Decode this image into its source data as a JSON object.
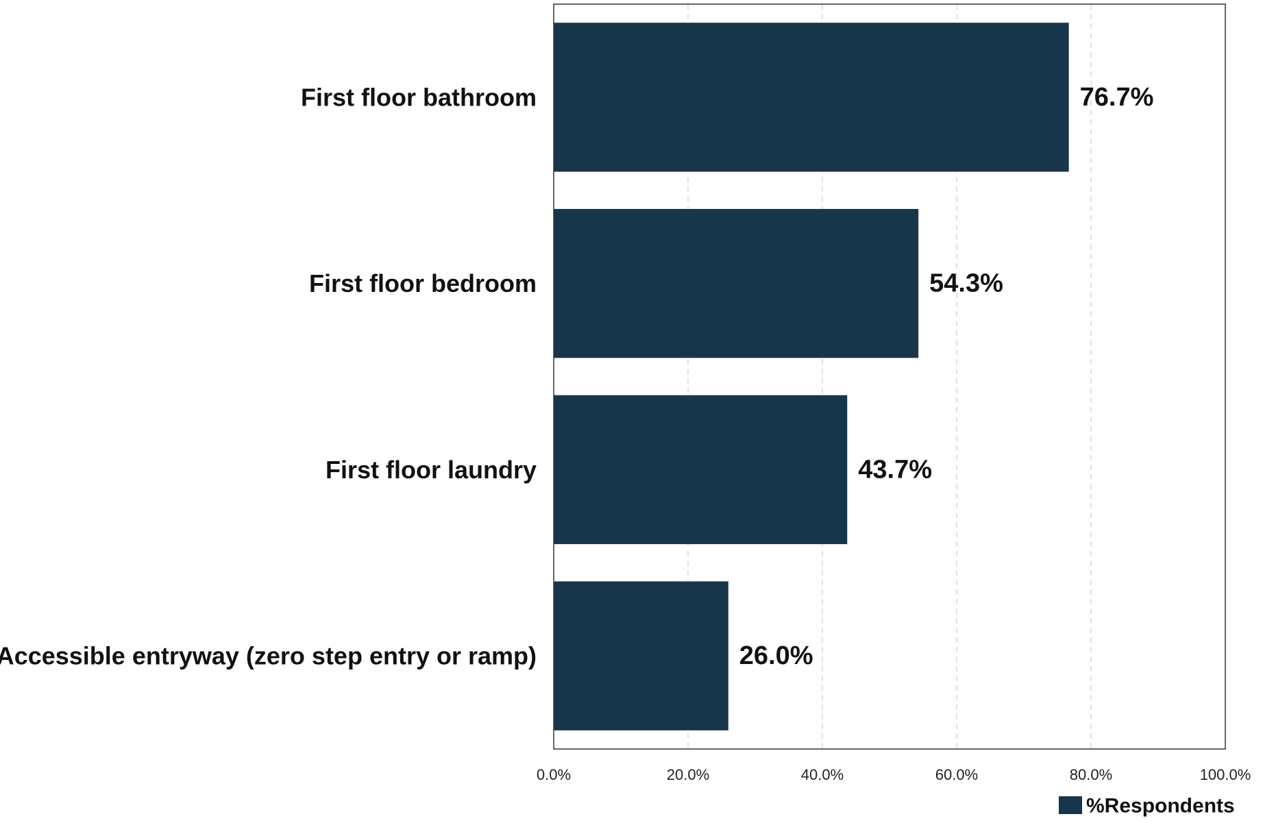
{
  "chart_data": {
    "type": "bar",
    "orientation": "horizontal",
    "categories": [
      "First floor bathroom",
      "First floor bedroom",
      "First floor laundry",
      "Accessible entryway (zero step entry or ramp)"
    ],
    "series": [
      {
        "name": "%Respondents",
        "values": [
          76.7,
          54.3,
          43.7,
          26.0
        ],
        "data_labels": [
          "76.7%",
          "54.3%",
          "43.7%",
          "26.0%"
        ],
        "color": "#17364b"
      }
    ],
    "xlim": [
      0,
      100
    ],
    "x_ticks": [
      0,
      20,
      40,
      60,
      80,
      100
    ],
    "x_tick_labels": [
      "0.0%",
      "20.0%",
      "40.0%",
      "60.0%",
      "80.0%",
      "100.0%"
    ],
    "grid": "vertical dashed",
    "legend": "bottom-right",
    "title": "",
    "xlabel": "",
    "ylabel": ""
  },
  "colors": {
    "bar": "#17364b",
    "grid": "#d9d9d9",
    "axis": "#333333"
  }
}
